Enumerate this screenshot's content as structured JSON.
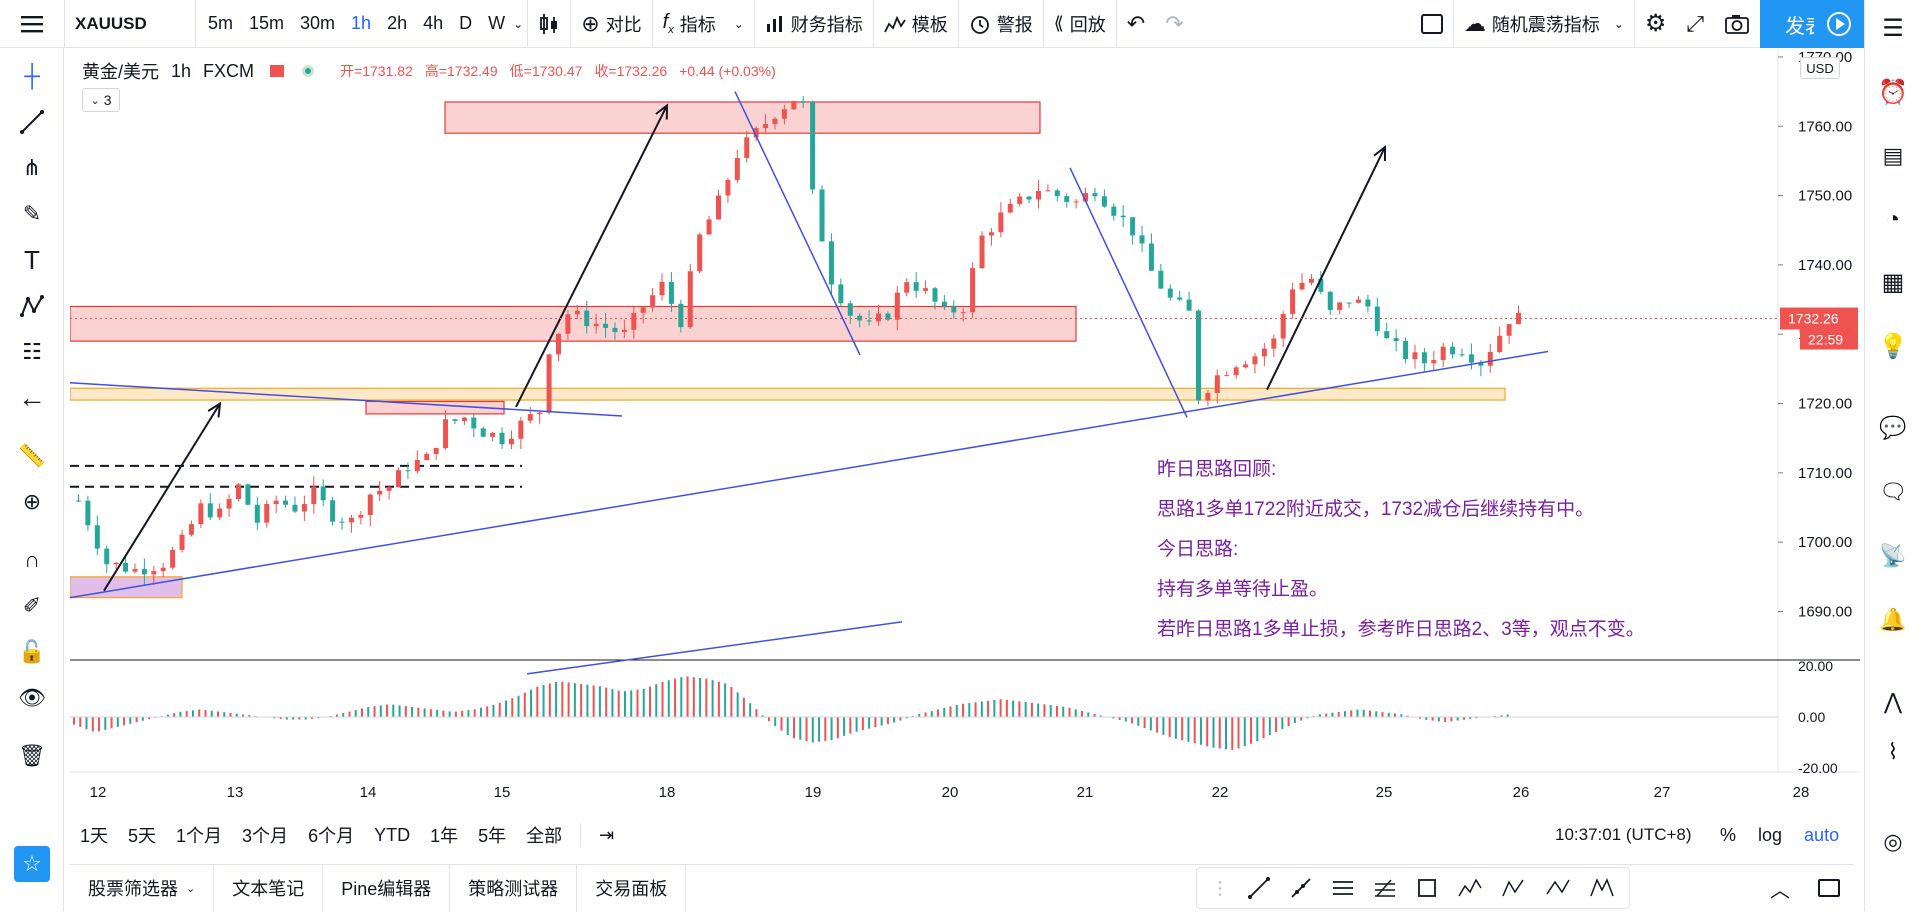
{
  "topbar": {
    "symbol": "XAUUSD",
    "intervals": [
      "5m",
      "15m",
      "30m",
      "1h",
      "2h",
      "4h",
      "D",
      "W"
    ],
    "active_interval": "1h",
    "compare": "对比",
    "indicators": "指标",
    "financials": "财务指标",
    "templates": "模板",
    "alerts": "警报",
    "replay": "回放",
    "layout_name": "随机震荡指标",
    "publish": "发表"
  },
  "legend": {
    "title": "黄金/美元",
    "interval": "1h",
    "source": "FXCM",
    "open": "开=1731.82",
    "high": "高=1732.49",
    "low": "低=1730.47",
    "close": "收=1732.26",
    "change": "+0.44 (+0.03%)",
    "indicator_count": "3"
  },
  "currency": "USD",
  "price_label": "1732.26",
  "countdown_label": "22:59",
  "notes": [
    "昨日思路回顾:",
    "思路1多单1722附近成交，1732减仓后继续持有中。",
    "今日思路:",
    "持有多单等待止盈。",
    "若昨日思路1多单止损，参考昨日思路2、3等，观点不变。"
  ],
  "range_bar": {
    "items": [
      "1天",
      "5天",
      "1个月",
      "3个月",
      "6个月",
      "YTD",
      "1年",
      "5年",
      "全部"
    ],
    "clock": "10:37:01 (UTC+8)",
    "percent": "%",
    "log": "log",
    "auto": "auto"
  },
  "bottom_tabs": [
    "股票筛选器",
    "文本笔记",
    "Pine编辑器",
    "策略测试器",
    "交易面板"
  ],
  "colors": {
    "up": "#ef5350",
    "down": "#26a69a",
    "accent": "#2962ff",
    "note": "#7b1fa2",
    "zone": "#f8bbbb",
    "support_zone": "#fde9c8"
  },
  "chart_data": {
    "type": "candlestick",
    "symbol": "XAUUSD",
    "x_ticks": [
      "12",
      "13",
      "14",
      "15",
      "18",
      "19",
      "20",
      "21",
      "22",
      "25",
      "26",
      "27",
      "28"
    ],
    "y_ticks": [
      1690,
      1700,
      1710,
      1720,
      1730,
      1740,
      1750,
      1760,
      1770
    ],
    "ylim": [
      1683,
      1771
    ],
    "last_price": 1732.26,
    "close_path": [
      [
        0,
        1706
      ],
      [
        3,
        1697
      ],
      [
        6,
        1696
      ],
      [
        9,
        1697
      ],
      [
        11,
        1700
      ],
      [
        13,
        1705
      ],
      [
        15,
        1704
      ],
      [
        17,
        1708
      ],
      [
        19,
        1703
      ],
      [
        21,
        1706
      ],
      [
        23,
        1705
      ],
      [
        25,
        1707
      ],
      [
        27,
        1704
      ],
      [
        29,
        1703
      ],
      [
        31,
        1707
      ],
      [
        33,
        1708
      ],
      [
        35,
        1711
      ],
      [
        37,
        1712
      ],
      [
        39,
        1717
      ],
      [
        41,
        1718
      ],
      [
        43,
        1716
      ],
      [
        45,
        1715
      ],
      [
        47,
        1717
      ],
      [
        49,
        1719
      ],
      [
        50,
        1728
      ],
      [
        52,
        1733
      ],
      [
        54,
        1732
      ],
      [
        56,
        1731
      ],
      [
        58,
        1730
      ],
      [
        60,
        1734
      ],
      [
        62,
        1737
      ],
      [
        64,
        1732
      ],
      [
        66,
        1744
      ],
      [
        68,
        1749
      ],
      [
        70,
        1756
      ],
      [
        72,
        1759
      ],
      [
        74,
        1762
      ],
      [
        76,
        1764
      ],
      [
        77,
        1763
      ],
      [
        78,
        1750
      ],
      [
        80,
        1738
      ],
      [
        82,
        1733
      ],
      [
        84,
        1731
      ],
      [
        86,
        1733
      ],
      [
        88,
        1738
      ],
      [
        90,
        1736
      ],
      [
        92,
        1733
      ],
      [
        94,
        1734
      ],
      [
        96,
        1744
      ],
      [
        98,
        1747
      ],
      [
        100,
        1749
      ],
      [
        102,
        1751
      ],
      [
        104,
        1750
      ],
      [
        106,
        1749
      ],
      [
        108,
        1751
      ],
      [
        110,
        1748
      ],
      [
        112,
        1745
      ],
      [
        114,
        1739
      ],
      [
        116,
        1735
      ],
      [
        118,
        1733
      ],
      [
        119,
        1721
      ],
      [
        121,
        1724
      ],
      [
        123,
        1726
      ],
      [
        125,
        1727
      ],
      [
        127,
        1729
      ],
      [
        129,
        1737
      ],
      [
        131,
        1738
      ],
      [
        133,
        1733
      ],
      [
        135,
        1735
      ],
      [
        137,
        1734
      ],
      [
        139,
        1729
      ],
      [
        141,
        1727
      ],
      [
        143,
        1726
      ],
      [
        145,
        1728
      ],
      [
        147,
        1728
      ],
      [
        149,
        1726
      ],
      [
        151,
        1730
      ],
      [
        152,
        1732.26
      ]
    ],
    "oscillator": {
      "ylim": [
        -20,
        20
      ],
      "y_ticks": [
        20,
        0,
        -20
      ],
      "values": [
        -3,
        -6,
        -4,
        -2,
        0,
        2,
        3,
        2,
        1,
        0,
        -1,
        -1,
        0,
        2,
        4,
        5,
        4,
        3,
        2,
        3,
        5,
        8,
        12,
        14,
        13,
        12,
        10,
        11,
        14,
        16,
        15,
        13,
        6,
        -2,
        -8,
        -10,
        -9,
        -6,
        -4,
        -2,
        1,
        3,
        5,
        6,
        7,
        6,
        5,
        4,
        2,
        0,
        -2,
        -5,
        -8,
        -10,
        -12,
        -13,
        -10,
        -6,
        -2,
        1,
        2,
        3,
        2,
        1,
        -1,
        -2,
        -1,
        0,
        1
      ]
    },
    "drawings": [
      "resistance-zone-1760",
      "resistance-zone-1733",
      "support-zone-1722",
      "trendline-support",
      "trendline-resistance",
      "arrows",
      "notes"
    ]
  }
}
